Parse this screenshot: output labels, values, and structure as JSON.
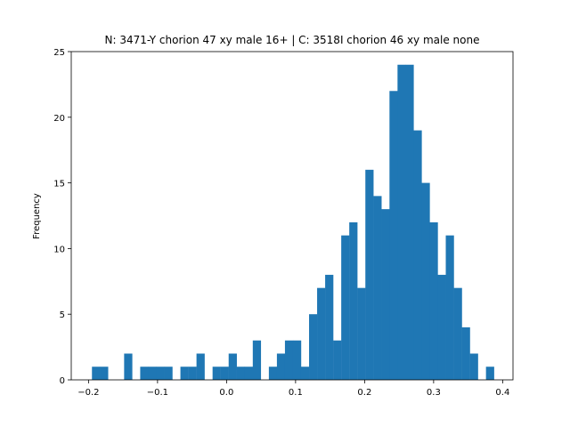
{
  "chart_data": {
    "type": "bar",
    "title": "N: 3471-Y chorion 47 xy male 16+ | C: 3518I chorion 46 xy male none",
    "xlabel": "",
    "ylabel": "Frequency",
    "xlim": [
      -0.225,
      0.415
    ],
    "ylim": [
      0,
      25
    ],
    "grid": false,
    "color": "#1f77b4",
    "x_ticks": [
      -0.2,
      -0.1,
      0.0,
      0.1,
      0.2,
      0.3,
      0.4
    ],
    "x_tick_labels": [
      "−0.2",
      "−0.1",
      "0.0",
      "0.1",
      "0.2",
      "0.3",
      "0.4"
    ],
    "y_ticks": [
      0,
      5,
      10,
      15,
      20,
      25
    ],
    "y_tick_labels": [
      "0",
      "5",
      "10",
      "15",
      "20",
      "25"
    ],
    "bins_start": -0.195,
    "bin_width": 0.01165,
    "values": [
      1,
      1,
      0,
      0,
      2,
      0,
      1,
      1,
      1,
      1,
      0,
      1,
      1,
      2,
      0,
      1,
      1,
      2,
      1,
      1,
      3,
      0,
      1,
      2,
      3,
      3,
      1,
      5,
      7,
      8,
      3,
      11,
      12,
      7,
      16,
      14,
      13,
      22,
      24,
      24,
      19,
      15,
      12,
      8,
      11,
      7,
      4,
      2,
      0,
      1
    ]
  }
}
